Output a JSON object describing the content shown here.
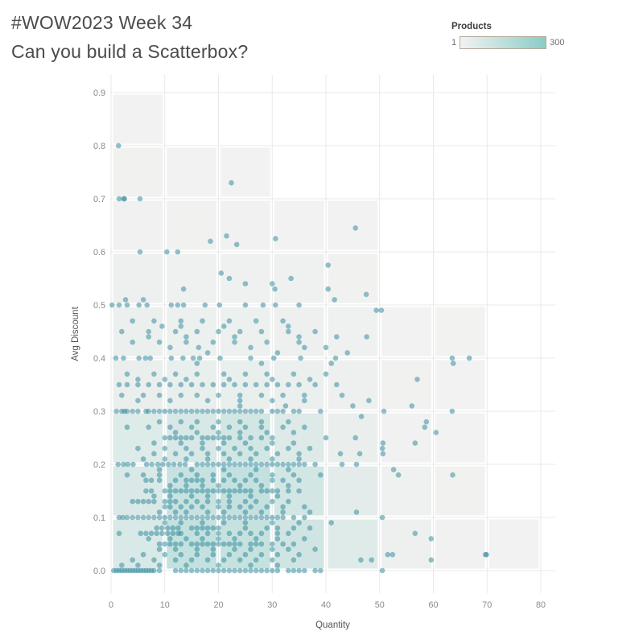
{
  "header": {
    "title_line1": "#WOW2023 Week 34",
    "title_line2": "Can you build a Scatterbox?"
  },
  "legend": {
    "title": "Products",
    "min_label": "1",
    "max_label": "300",
    "min_value": 1,
    "max_value": 300,
    "min_color": "#f2f2f1",
    "max_color": "#8accc7",
    "border_color": "#b5ab9d"
  },
  "chart_data": {
    "type": "scatter",
    "title": "#WOW2023 Week 34 — Can you build a Scatterbox?",
    "xlabel": "Quantity",
    "ylabel": "Avg Discount",
    "xlim": [
      -0.5,
      82.5
    ],
    "ylim": [
      -0.045,
      0.935
    ],
    "x_ticks": [
      0,
      10,
      20,
      30,
      40,
      50,
      60,
      70,
      80
    ],
    "y_ticks": [
      "0.0",
      "0.1",
      "0.2",
      "0.3",
      "0.4",
      "0.5",
      "0.6",
      "0.7",
      "0.8",
      "0.9"
    ],
    "grid": true,
    "legend_position": "top-right",
    "point_color": "#2a869a",
    "point_opacity": 0.5,
    "point_radius": 3.3,
    "box_size": {
      "q": 10,
      "d": 0.1
    },
    "cell_rows": [
      {
        "d0": 0.0,
        "counts": [
          75,
          135,
          128,
          100,
          55,
          15,
          6,
          4
        ]
      },
      {
        "d0": 0.1,
        "counts": [
          70,
          125,
          132,
          92,
          45,
          12,
          5,
          null
        ]
      },
      {
        "d0": 0.2,
        "counts": [
          60,
          80,
          92,
          62,
          25,
          7,
          4,
          null
        ]
      },
      {
        "d0": 0.3,
        "counts": [
          25,
          27,
          26,
          22,
          13,
          5,
          3,
          null
        ]
      },
      {
        "d0": 0.4,
        "counts": [
          20,
          19,
          18,
          16,
          9,
          4,
          2,
          null
        ]
      },
      {
        "d0": 0.5,
        "counts": [
          13,
          11,
          11,
          9,
          5,
          null,
          null,
          null
        ]
      },
      {
        "d0": 0.6,
        "counts": [
          8,
          5,
          6,
          4,
          3,
          null,
          null,
          null
        ]
      },
      {
        "d0": 0.7,
        "counts": [
          5,
          3,
          3,
          null,
          null,
          null,
          null,
          null
        ]
      },
      {
        "d0": 0.8,
        "counts": [
          3,
          null,
          null,
          null,
          null,
          null,
          null,
          null
        ]
      }
    ],
    "bands": [
      {
        "d": 0.8,
        "q": [
          1.4
        ]
      },
      {
        "d": 0.73,
        "q": [
          22.4
        ]
      },
      {
        "d": 0.7,
        "q": [
          1.5,
          2.35,
          2.5,
          5.4
        ]
      },
      {
        "d": 0.645,
        "q": [
          45.5
        ]
      },
      {
        "d": 0.63,
        "q": [
          21.5
        ]
      },
      {
        "d": 0.625,
        "q": [
          30.6
        ]
      },
      {
        "d": 0.62,
        "q": [
          18.5
        ]
      },
      {
        "d": 0.614,
        "q": [
          23.4
        ]
      },
      {
        "d": 0.6,
        "q": [
          5.4,
          10.4,
          12.4
        ]
      },
      {
        "d": 0.575,
        "q": [
          40.4
        ]
      },
      {
        "d": 0.56,
        "q": [
          20.5
        ]
      },
      {
        "d": 0.55,
        "q": [
          22,
          33.5
        ]
      },
      {
        "d": 0.54,
        "q": [
          25,
          30
        ]
      },
      {
        "d": 0.53,
        "q": [
          13.5,
          30.5,
          40.4
        ]
      },
      {
        "d": 0.52,
        "q": [
          47.5
        ]
      },
      {
        "d": 0.51,
        "q": [
          2.7,
          6,
          41.6
        ]
      },
      {
        "d": 0.5,
        "q": [
          0.2,
          1.5,
          3,
          5.2,
          6.7,
          11.2,
          12.4,
          13.5,
          17.5,
          20.2,
          25,
          28.3,
          30.6,
          35
        ]
      },
      {
        "d": 0.49,
        "q": [
          49.4,
          50.3
        ]
      },
      {
        "d": 0.47,
        "q": [
          4,
          8,
          13,
          17,
          22,
          27,
          32
        ]
      },
      {
        "d": 0.46,
        "q": [
          9.5,
          13,
          21,
          33
        ]
      },
      {
        "d": 0.45,
        "q": [
          2,
          7,
          12,
          16,
          20,
          24,
          28,
          33,
          38
        ]
      },
      {
        "d": 0.44,
        "q": [
          7,
          14,
          23,
          35,
          42,
          47.6
        ]
      },
      {
        "d": 0.43,
        "q": [
          4,
          9,
          14,
          19,
          23,
          29,
          35
        ]
      },
      {
        "d": 0.42,
        "q": [
          11,
          16.3,
          26,
          36,
          40
        ]
      },
      {
        "d": 0.41,
        "q": [
          18,
          31,
          44
        ]
      },
      {
        "d": 0.4,
        "q": [
          0.9,
          2.3,
          5.2,
          6.4,
          7.3,
          11.2,
          13.4,
          15.3,
          16.5,
          20.3,
          26,
          30.3,
          35.3,
          41.8,
          63.5,
          66.7
        ]
      },
      {
        "d": 0.39,
        "q": [
          16,
          28,
          41,
          63.7
        ]
      },
      {
        "d": 0.37,
        "q": [
          3,
          8,
          12,
          16,
          21,
          25,
          29,
          34,
          40
        ]
      },
      {
        "d": 0.36,
        "q": [
          5,
          10,
          14,
          22,
          30,
          37,
          57
        ]
      },
      {
        "d": 0.35,
        "q": [
          1.5,
          3,
          5,
          7,
          9,
          11,
          13,
          15,
          17,
          19,
          21,
          23,
          25,
          27,
          29,
          31,
          33,
          35,
          38,
          42
        ]
      },
      {
        "d": 0.33,
        "q": [
          2,
          6,
          9,
          13,
          16,
          20,
          24,
          28,
          32,
          36,
          43
        ]
      },
      {
        "d": 0.32,
        "q": [
          5,
          11,
          18,
          24,
          30,
          36,
          48
        ]
      },
      {
        "d": 0.31,
        "q": [
          24,
          32.5,
          45,
          56
        ]
      },
      {
        "d": 0.3,
        "q": [
          1,
          2,
          2.5,
          3,
          4,
          5,
          6.5,
          7,
          8,
          9,
          10,
          11,
          12,
          13,
          14,
          15,
          16,
          17,
          18,
          19,
          20,
          21,
          22,
          23,
          24,
          25,
          26,
          27,
          28,
          30,
          31,
          32,
          34,
          35,
          39,
          50.8,
          63.5
        ]
      },
      {
        "d": 0.29,
        "q": [
          46.6
        ]
      },
      {
        "d": 0.28,
        "q": [
          9,
          13,
          16,
          20,
          24,
          28,
          33,
          58.7
        ]
      },
      {
        "d": 0.27,
        "q": [
          3,
          7,
          11,
          15,
          19,
          22,
          25,
          28,
          32,
          36,
          58.4
        ]
      },
      {
        "d": 0.26,
        "q": [
          12,
          16,
          20,
          24,
          29,
          34,
          60.5
        ]
      },
      {
        "d": 0.25,
        "q": [
          10,
          11,
          12,
          13,
          14,
          15,
          17,
          18,
          19,
          20,
          21,
          22,
          24,
          26,
          28,
          30,
          40,
          45.5
        ]
      },
      {
        "d": 0.24,
        "q": [
          8,
          13,
          17,
          21,
          25,
          30,
          34,
          50.6,
          56.6
        ]
      },
      {
        "d": 0.23,
        "q": [
          5,
          10,
          14,
          17,
          20,
          23,
          26,
          29,
          33,
          37,
          50.5
        ]
      },
      {
        "d": 0.22,
        "q": [
          8,
          12,
          15,
          18,
          21,
          24,
          27,
          31,
          35,
          42.7,
          46.3,
          50.6
        ]
      },
      {
        "d": 0.21,
        "q": [
          6,
          10,
          14,
          18,
          22,
          26,
          30,
          35
        ]
      },
      {
        "d": 0.2,
        "q": [
          1.3,
          2.3,
          3.1,
          4.1,
          6.6,
          7.6,
          8.7,
          9.6,
          10.7,
          11.7,
          12.8,
          13.8,
          16,
          17,
          18,
          19,
          20,
          21,
          22,
          23,
          24,
          25,
          26,
          27,
          28,
          29,
          30,
          31,
          32,
          33,
          34,
          35,
          36,
          38,
          43,
          45.7
        ]
      },
      {
        "d": 0.19,
        "q": [
          9,
          15,
          21,
          27,
          33,
          52.6
        ]
      },
      {
        "d": 0.18,
        "q": [
          3,
          6,
          9,
          13,
          16,
          19,
          22,
          26,
          30,
          34,
          39,
          53.5,
          63.6
        ]
      },
      {
        "d": 0.17,
        "q": [
          6.5,
          7.5,
          9,
          12,
          14,
          15,
          16,
          17,
          19,
          21,
          23,
          25,
          27,
          30,
          32,
          35
        ]
      },
      {
        "d": 0.16,
        "q": [
          11,
          14,
          17,
          20,
          24,
          28,
          33
        ]
      },
      {
        "d": 0.15,
        "q": [
          6.5,
          7.5,
          10,
          11,
          12,
          13,
          14,
          15,
          16,
          17,
          18,
          19,
          20,
          21,
          22,
          23,
          24,
          25,
          26,
          28,
          29,
          30,
          31,
          33,
          35
        ]
      },
      {
        "d": 0.14,
        "q": [
          8,
          11,
          15,
          18,
          22,
          26,
          31
        ]
      },
      {
        "d": 0.13,
        "q": [
          4,
          5,
          6,
          7,
          8,
          10,
          11,
          12,
          14,
          16,
          18,
          20,
          22,
          25,
          27,
          30,
          33
        ]
      },
      {
        "d": 0.12,
        "q": [
          10,
          11,
          13,
          15,
          17,
          20,
          22,
          24,
          26,
          29,
          32,
          36
        ]
      },
      {
        "d": 0.11,
        "q": [
          9,
          12,
          14,
          18,
          21,
          25,
          28,
          32,
          37,
          45.7
        ]
      },
      {
        "d": 0.1,
        "q": [
          1.5,
          2.2,
          3,
          4,
          5,
          6,
          7,
          8,
          9,
          10,
          11,
          12,
          13,
          14,
          15,
          16,
          17,
          18,
          19,
          20,
          21,
          22,
          23,
          24,
          25,
          26,
          27,
          28,
          29,
          30,
          31,
          32,
          34,
          36,
          50.5
        ]
      },
      {
        "d": 0.09,
        "q": [
          10,
          13,
          17,
          21,
          25,
          30,
          35,
          41
        ]
      },
      {
        "d": 0.08,
        "q": [
          8.5,
          9.5,
          10.5,
          11.5,
          12.5,
          15,
          16,
          17,
          18,
          19,
          20,
          25,
          29,
          31,
          34,
          37
        ]
      },
      {
        "d": 0.07,
        "q": [
          1.5,
          5.5,
          6.5,
          7.5,
          8.5,
          9.5,
          10.5,
          11.5,
          12.5,
          13,
          16,
          18,
          20,
          22,
          24,
          26,
          28,
          31,
          33,
          56.6
        ]
      },
      {
        "d": 0.06,
        "q": [
          7,
          11,
          14,
          17,
          20,
          23,
          27,
          31,
          36,
          59.6
        ]
      },
      {
        "d": 0.05,
        "q": [
          9,
          10,
          11,
          12,
          13,
          15,
          16,
          17,
          18,
          19,
          20,
          21,
          22,
          23,
          24,
          26,
          27,
          28,
          30,
          32,
          34
        ]
      },
      {
        "d": 0.04,
        "q": [
          9,
          12,
          16,
          19,
          23,
          26,
          30,
          33,
          38
        ]
      },
      {
        "d": 0.03,
        "q": [
          6,
          10,
          13,
          16,
          19,
          22,
          25,
          28,
          31,
          35,
          51.5,
          52.4,
          69.7,
          69.9
        ]
      },
      {
        "d": 0.02,
        "q": [
          4,
          8,
          12,
          15,
          18,
          21,
          24,
          27,
          30,
          34,
          46.5,
          48.5,
          59.6
        ]
      },
      {
        "d": 0.01,
        "q": [
          2,
          5,
          9,
          14,
          20,
          26,
          31
        ]
      },
      {
        "d": 0.0,
        "q": [
          0.5,
          1,
          1.5,
          2,
          2.5,
          3,
          3.5,
          4,
          4.5,
          5,
          5.5,
          6,
          6.5,
          7,
          7.5,
          8,
          9,
          12,
          13,
          14,
          15,
          16,
          17,
          18,
          19,
          20,
          21,
          22,
          23,
          24,
          25,
          26,
          27,
          28,
          29,
          30,
          31,
          33,
          34,
          35,
          36,
          38,
          39,
          50.5
        ]
      }
    ]
  }
}
